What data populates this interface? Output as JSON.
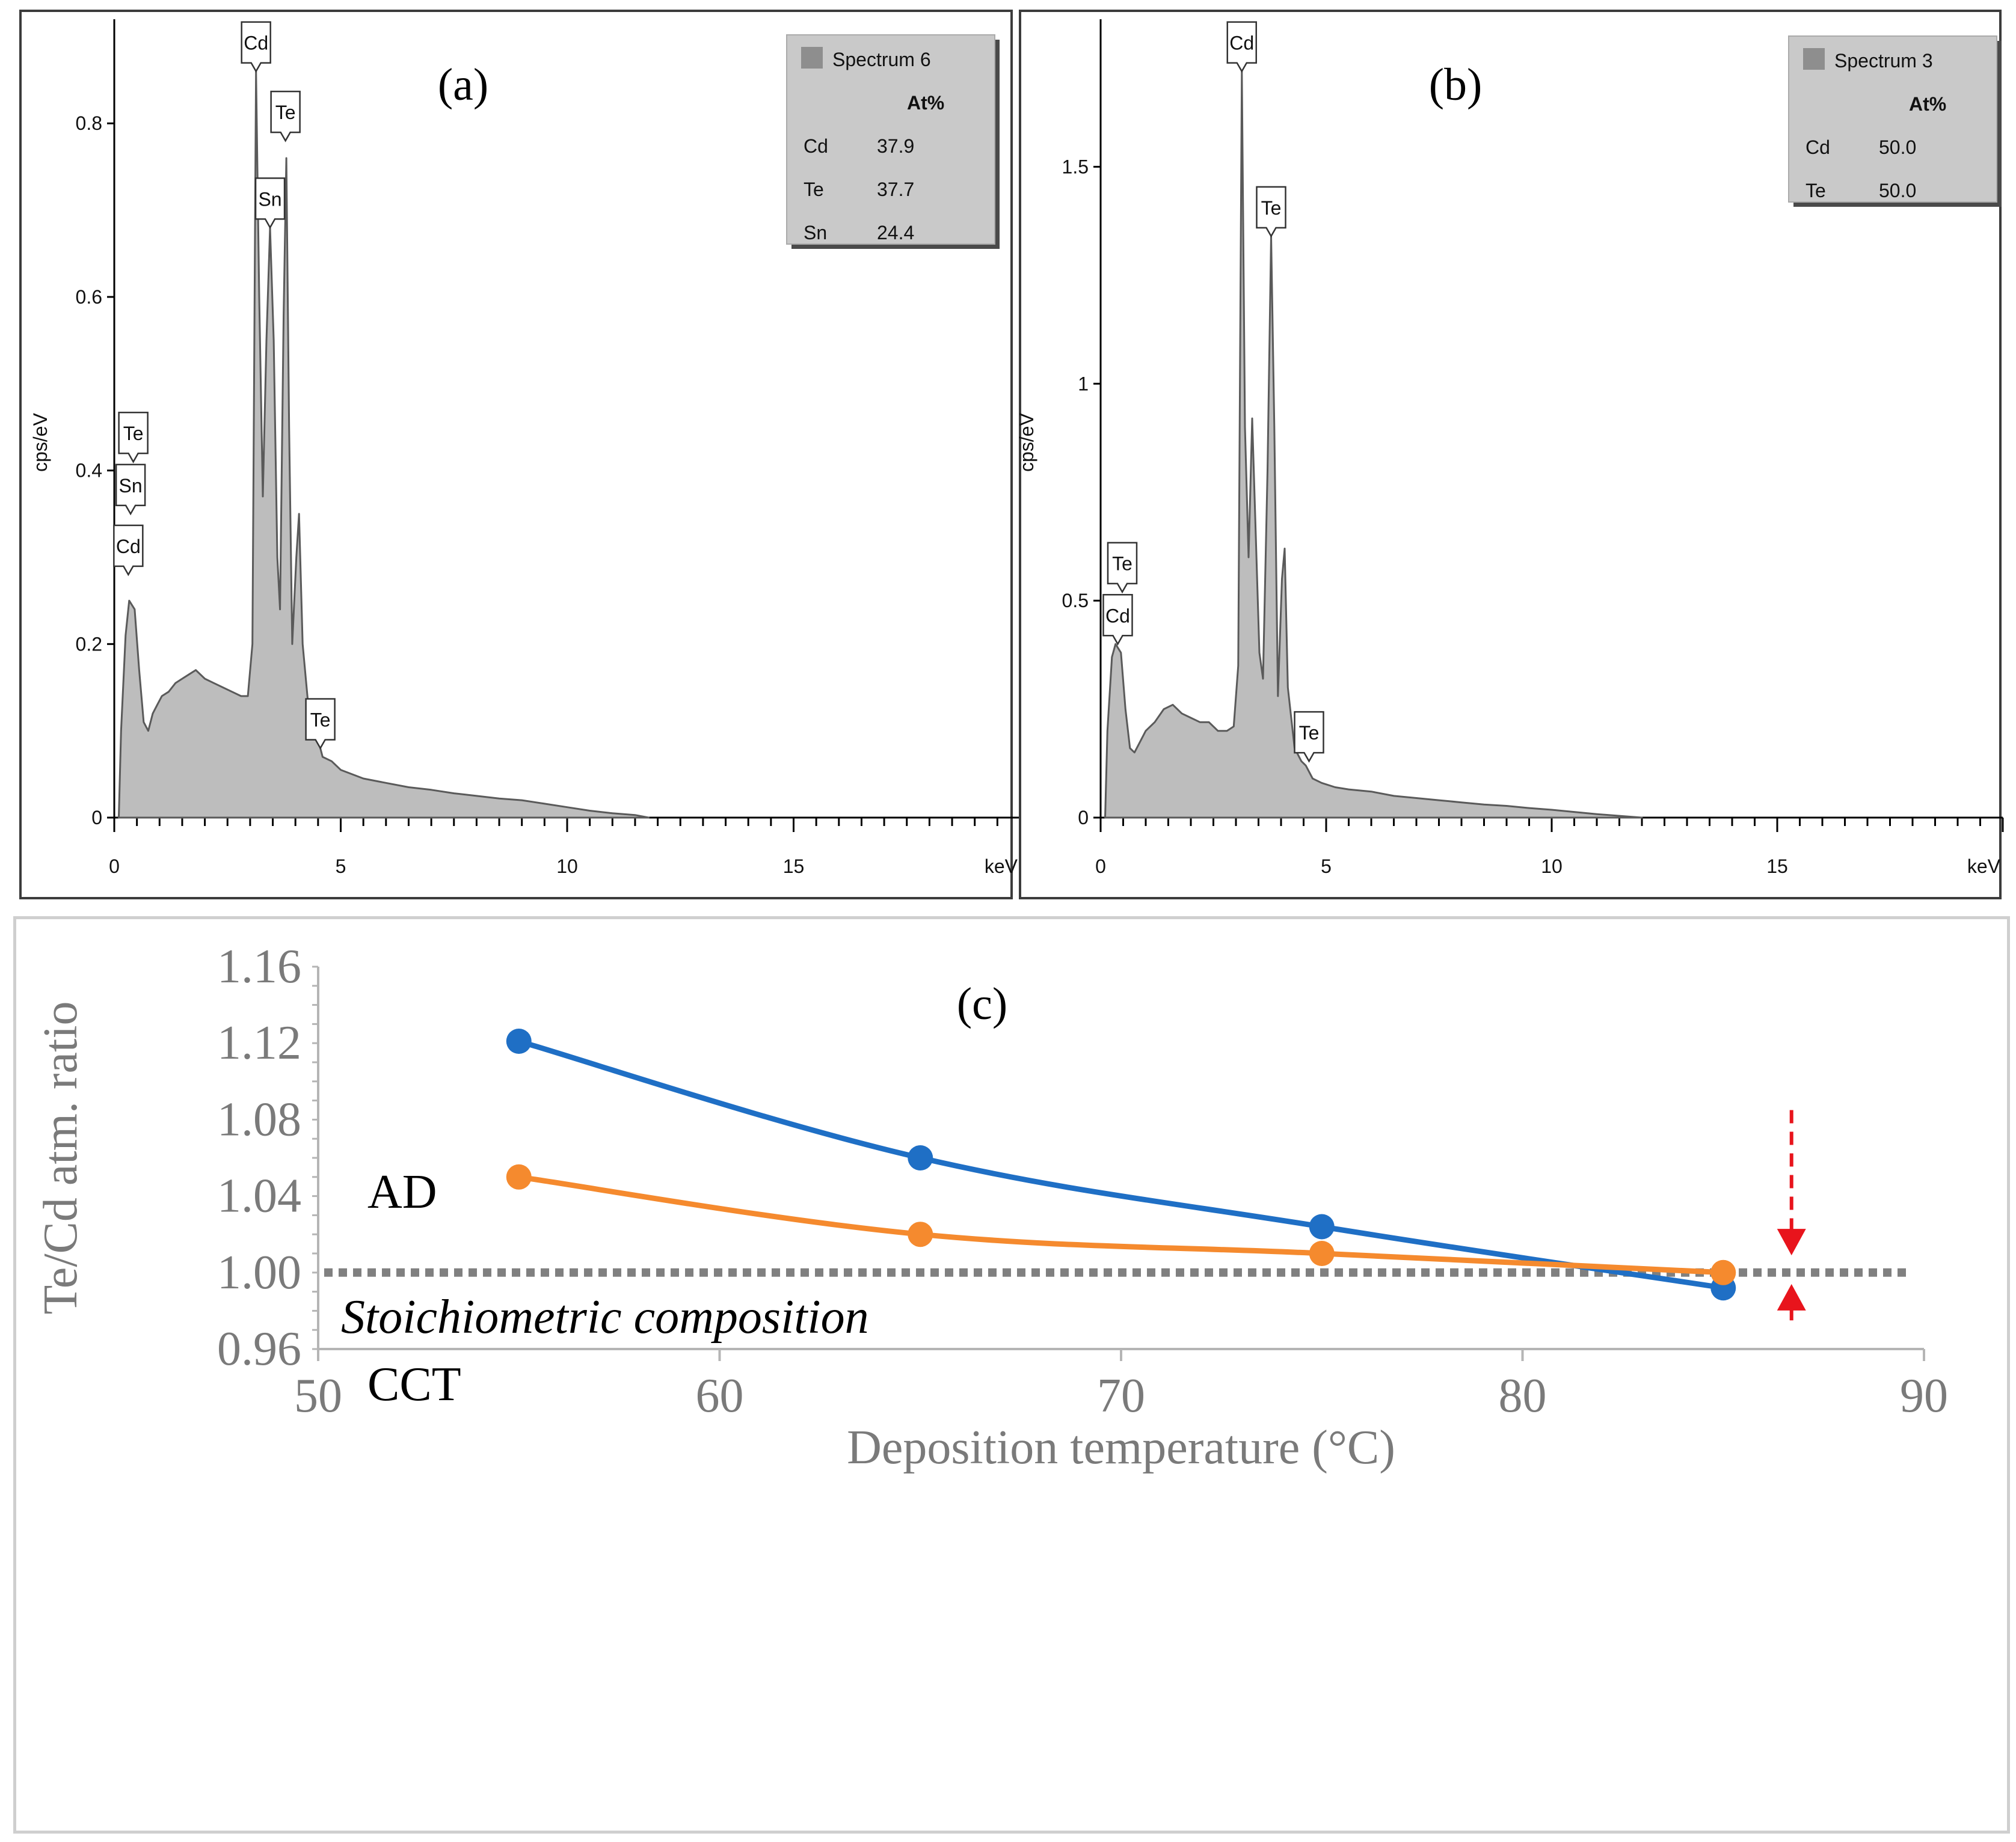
{
  "chart_data": [
    {
      "id": "a",
      "type": "area",
      "panel_label": "(a)",
      "xlabel": "keV",
      "ylabel": "cps/eV",
      "xlim": [
        0,
        20
      ],
      "ylim": [
        0,
        0.92
      ],
      "x_ticks": [
        "0",
        "5",
        "10",
        "15"
      ],
      "x_tick_values": [
        0,
        5,
        10,
        15
      ],
      "y_ticks": [
        "0",
        "0.2",
        "0.4",
        "0.6",
        "0.8"
      ],
      "y_tick_values": [
        0,
        0.2,
        0.4,
        0.6,
        0.8
      ],
      "spectrum": [
        [
          0.1,
          0
        ],
        [
          0.15,
          0.1
        ],
        [
          0.25,
          0.21
        ],
        [
          0.33,
          0.25
        ],
        [
          0.45,
          0.24
        ],
        [
          0.55,
          0.17
        ],
        [
          0.65,
          0.11
        ],
        [
          0.75,
          0.1
        ],
        [
          0.85,
          0.12
        ],
        [
          0.95,
          0.13
        ],
        [
          1.05,
          0.14
        ],
        [
          1.2,
          0.145
        ],
        [
          1.35,
          0.155
        ],
        [
          1.5,
          0.16
        ],
        [
          1.65,
          0.165
        ],
        [
          1.8,
          0.17
        ],
        [
          2.0,
          0.16
        ],
        [
          2.2,
          0.155
        ],
        [
          2.4,
          0.15
        ],
        [
          2.6,
          0.145
        ],
        [
          2.8,
          0.14
        ],
        [
          2.95,
          0.14
        ],
        [
          3.05,
          0.2
        ],
        [
          3.13,
          0.86
        ],
        [
          3.2,
          0.6
        ],
        [
          3.28,
          0.37
        ],
        [
          3.36,
          0.55
        ],
        [
          3.44,
          0.68
        ],
        [
          3.52,
          0.55
        ],
        [
          3.6,
          0.3
        ],
        [
          3.66,
          0.24
        ],
        [
          3.74,
          0.58
        ],
        [
          3.8,
          0.76
        ],
        [
          3.86,
          0.45
        ],
        [
          3.93,
          0.2
        ],
        [
          4.02,
          0.3
        ],
        [
          4.08,
          0.35
        ],
        [
          4.16,
          0.2
        ],
        [
          4.3,
          0.12
        ],
        [
          4.45,
          0.1
        ],
        [
          4.6,
          0.07
        ],
        [
          4.8,
          0.065
        ],
        [
          5.0,
          0.055
        ],
        [
          5.5,
          0.045
        ],
        [
          6.0,
          0.04
        ],
        [
          6.5,
          0.035
        ],
        [
          7.0,
          0.032
        ],
        [
          7.5,
          0.028
        ],
        [
          8.0,
          0.025
        ],
        [
          8.5,
          0.022
        ],
        [
          9.0,
          0.02
        ],
        [
          9.5,
          0.016
        ],
        [
          10.0,
          0.012
        ],
        [
          10.5,
          0.008
        ],
        [
          11.0,
          0.005
        ],
        [
          11.5,
          0.003
        ],
        [
          11.8,
          0
        ]
      ],
      "peak_labels": [
        {
          "text": "Cd",
          "x": 3.13,
          "y": 0.86
        },
        {
          "text": "Te",
          "x": 3.78,
          "y": 0.78
        },
        {
          "text": "Sn",
          "x": 3.44,
          "y": 0.68
        },
        {
          "text": "Te",
          "x": 0.42,
          "y": 0.41
        },
        {
          "text": "Sn",
          "x": 0.36,
          "y": 0.35
        },
        {
          "text": "Cd",
          "x": 0.31,
          "y": 0.28
        },
        {
          "text": "Te",
          "x": 4.55,
          "y": 0.08
        }
      ],
      "legend": {
        "title": "Spectrum 6",
        "header": "At%",
        "rows": [
          [
            "Cd",
            "37.9"
          ],
          [
            "Te",
            "37.7"
          ],
          [
            "Sn",
            "24.4"
          ]
        ]
      }
    },
    {
      "id": "b",
      "type": "area",
      "panel_label": "(b)",
      "xlabel": "keV",
      "ylabel": "cps/eV",
      "xlim": [
        0,
        20
      ],
      "ylim": [
        0,
        1.84
      ],
      "x_ticks": [
        "0",
        "5",
        "10",
        "15"
      ],
      "x_tick_values": [
        0,
        5,
        10,
        15
      ],
      "y_ticks": [
        "0",
        "0.5",
        "1",
        "1.5"
      ],
      "y_tick_values": [
        0,
        0.5,
        1,
        1.5
      ],
      "spectrum": [
        [
          0.1,
          0
        ],
        [
          0.15,
          0.2
        ],
        [
          0.25,
          0.37
        ],
        [
          0.33,
          0.4
        ],
        [
          0.45,
          0.38
        ],
        [
          0.55,
          0.25
        ],
        [
          0.65,
          0.16
        ],
        [
          0.75,
          0.15
        ],
        [
          0.85,
          0.17
        ],
        [
          1.0,
          0.2
        ],
        [
          1.2,
          0.22
        ],
        [
          1.4,
          0.25
        ],
        [
          1.6,
          0.26
        ],
        [
          1.8,
          0.24
        ],
        [
          2.0,
          0.23
        ],
        [
          2.2,
          0.22
        ],
        [
          2.4,
          0.22
        ],
        [
          2.6,
          0.2
        ],
        [
          2.8,
          0.2
        ],
        [
          2.95,
          0.21
        ],
        [
          3.05,
          0.35
        ],
        [
          3.13,
          1.72
        ],
        [
          3.2,
          0.9
        ],
        [
          3.28,
          0.6
        ],
        [
          3.36,
          0.92
        ],
        [
          3.44,
          0.65
        ],
        [
          3.52,
          0.38
        ],
        [
          3.6,
          0.32
        ],
        [
          3.7,
          0.8
        ],
        [
          3.78,
          1.34
        ],
        [
          3.85,
          0.9
        ],
        [
          3.93,
          0.28
        ],
        [
          4.02,
          0.55
        ],
        [
          4.08,
          0.62
        ],
        [
          4.15,
          0.3
        ],
        [
          4.3,
          0.16
        ],
        [
          4.45,
          0.13
        ],
        [
          4.55,
          0.12
        ],
        [
          4.7,
          0.09
        ],
        [
          4.9,
          0.08
        ],
        [
          5.2,
          0.07
        ],
        [
          5.5,
          0.065
        ],
        [
          6.0,
          0.06
        ],
        [
          6.5,
          0.05
        ],
        [
          7.0,
          0.045
        ],
        [
          7.5,
          0.04
        ],
        [
          8.0,
          0.035
        ],
        [
          8.5,
          0.03
        ],
        [
          9.0,
          0.027
        ],
        [
          9.5,
          0.022
        ],
        [
          10.0,
          0.018
        ],
        [
          10.5,
          0.013
        ],
        [
          11.0,
          0.008
        ],
        [
          11.5,
          0.004
        ],
        [
          12.0,
          0
        ]
      ],
      "peak_labels": [
        {
          "text": "Cd",
          "x": 3.13,
          "y": 1.72
        },
        {
          "text": "Te",
          "x": 3.78,
          "y": 1.34
        },
        {
          "text": "Te",
          "x": 0.48,
          "y": 0.52
        },
        {
          "text": "Cd",
          "x": 0.38,
          "y": 0.4
        },
        {
          "text": "Te",
          "x": 4.62,
          "y": 0.13
        }
      ],
      "legend": {
        "title": "Spectrum 3",
        "header": "At%",
        "rows": [
          [
            "Cd",
            "50.0"
          ],
          [
            "Te",
            "50.0"
          ]
        ]
      }
    },
    {
      "id": "c",
      "type": "line",
      "panel_label": "(c)",
      "xlabel": "Deposition temperature (°C)",
      "ylabel": "Te/Cd atm. ratio",
      "xlim": [
        50,
        90
      ],
      "ylim": [
        0.96,
        1.16
      ],
      "x_ticks": [
        "50",
        "60",
        "70",
        "80",
        "90"
      ],
      "x_tick_values": [
        50,
        60,
        70,
        80,
        90
      ],
      "y_ticks": [
        "0.96",
        "1.00",
        "1.04",
        "1.08",
        "1.12",
        "1.16"
      ],
      "y_tick_values": [
        0.96,
        1.0,
        1.04,
        1.08,
        1.12,
        1.16
      ],
      "series": [
        {
          "name": "AD",
          "color": "#1f6fc5",
          "x": [
            55,
            65,
            75,
            85
          ],
          "values": [
            1.121,
            1.06,
            1.024,
            0.992
          ]
        },
        {
          "name": "CCT",
          "color": "#f58a2e",
          "x": [
            55,
            65,
            75,
            85
          ],
          "values": [
            1.05,
            1.02,
            1.01,
            1.0
          ]
        }
      ],
      "reference_line": {
        "y": 1.0,
        "label": "Stoichiometric composition",
        "color": "#808080"
      },
      "arrow_color": "#e8141c",
      "arrows": {
        "x": 86.7,
        "top_from": 1.085,
        "top_to": 1.009,
        "bottom_from": 0.975,
        "bottom_to": 0.994
      }
    }
  ]
}
